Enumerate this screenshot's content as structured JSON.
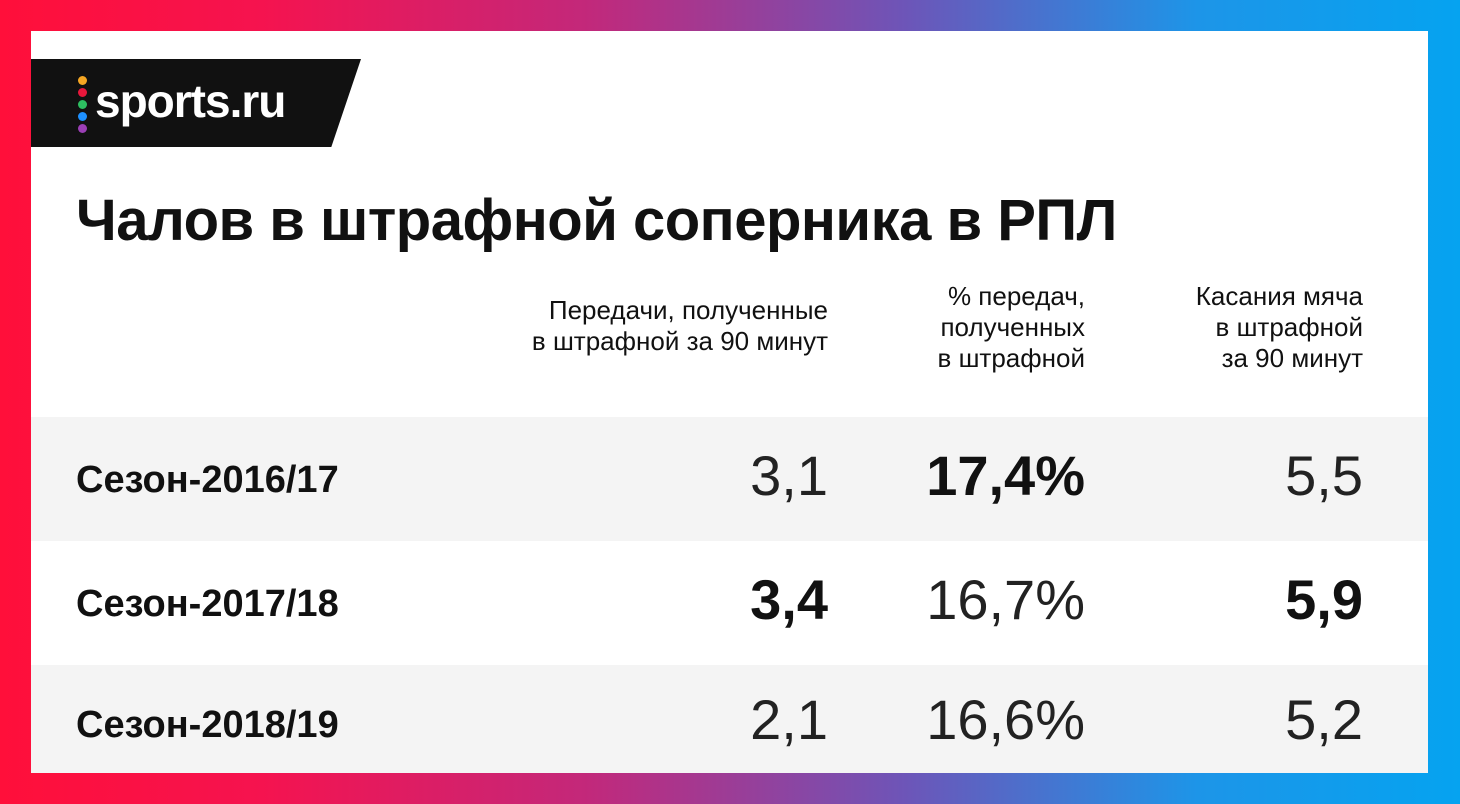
{
  "logo": {
    "text": "sports.ru",
    "dot_colors": [
      "#f5a623",
      "#e8173b",
      "#2dbe60",
      "#1e90ff",
      "#9b3fb5"
    ]
  },
  "title": "Чалов в штрафной соперника в РПЛ",
  "chart_data": {
    "type": "table",
    "title": "Чалов в штрафной соперника в РПЛ",
    "columns": [
      "Передачи, полученные\nв штрафной за 90 минут",
      "% передач,\nполученных\nв штрафной",
      "Касания мяча\nв штрафной\nза 90 минут"
    ],
    "rows": [
      {
        "label": "Сезон-2016/17",
        "values": [
          "3,1",
          "17,4%",
          "5,5"
        ],
        "bold": [
          false,
          true,
          false
        ]
      },
      {
        "label": "Сезон-2017/18",
        "values": [
          "3,4",
          "16,7%",
          "5,9"
        ],
        "bold": [
          true,
          false,
          true
        ]
      },
      {
        "label": "Сезон-2018/19",
        "values": [
          "2,1",
          "16,6%",
          "5,2"
        ],
        "bold": [
          false,
          false,
          false
        ]
      }
    ]
  },
  "colors": {
    "frame_left": "#ff0f3a",
    "frame_right": "#05a3f0",
    "row_shade": "#f4f4f4",
    "text": "#111111"
  }
}
